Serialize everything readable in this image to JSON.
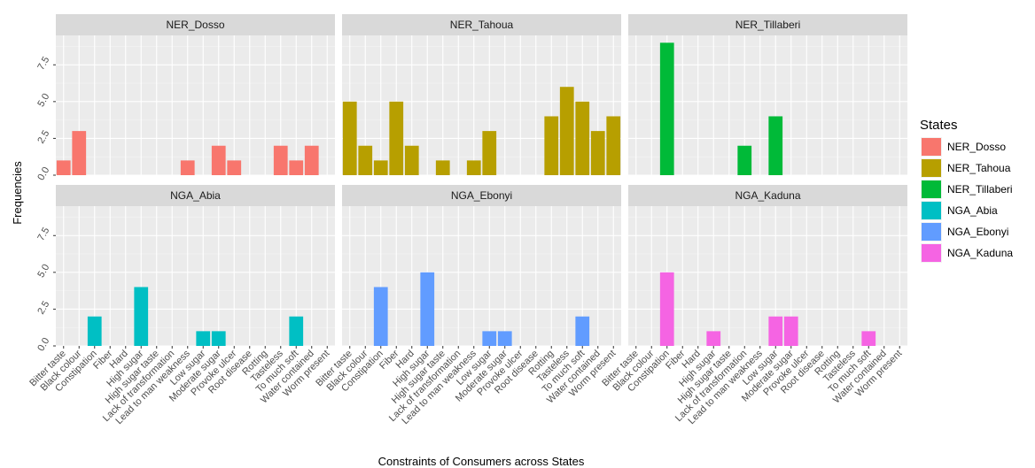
{
  "chart_data": {
    "type": "bar",
    "layout": "facet-grid 2x3",
    "xlabel": "Constraints of Consumers across States",
    "ylabel": "Frequencies",
    "ylim": [
      0,
      9.5
    ],
    "yticks": [
      0,
      2.5,
      5,
      7.5
    ],
    "ytick_labels": [
      "0.0",
      "2.5",
      "5.0",
      "7.5"
    ],
    "grid": true,
    "legend": {
      "title": "States",
      "position": "right"
    },
    "panels": [
      {
        "name": "NER_Dosso",
        "color": "#F8766D",
        "categories": [
          "Bitter taste",
          "Black colour",
          "Constipation",
          "Fiber",
          "Hard",
          "High sugar",
          "High sugar taste",
          "Lack of transformation",
          "Lead to man weakness",
          "Low sugar",
          "Moderate sugar",
          "Provoke ulcer",
          "Root disease",
          "Rotting",
          "Tasteless",
          "To much soft",
          "Water contained",
          "Worm present"
        ],
        "values": [
          1,
          3,
          0,
          0,
          0,
          0,
          0,
          0,
          1,
          0,
          2,
          1,
          0,
          0,
          2,
          1,
          2,
          0
        ]
      },
      {
        "name": "NER_Tahoua",
        "color": "#B79F00",
        "categories": [
          "Bitter taste",
          "Black colour",
          "Constipation",
          "Fiber",
          "Hard",
          "High sugar",
          "High sugar taste",
          "Lack of transformation",
          "Lead to man weakness",
          "Low sugar",
          "Moderate sugar",
          "Provoke ulcer",
          "Root disease",
          "Rotting",
          "Tasteless",
          "To much soft",
          "Water contained",
          "Worm present"
        ],
        "values": [
          5,
          2,
          1,
          5,
          2,
          0,
          1,
          0,
          1,
          3,
          0,
          0,
          0,
          4,
          6,
          5,
          3,
          4
        ]
      },
      {
        "name": "NER_Tillaberi",
        "color": "#00BA38",
        "categories": [
          "Bitter taste",
          "Black colour",
          "Constipation",
          "Fiber",
          "Hard",
          "High sugar",
          "High sugar taste",
          "Lack of transformation",
          "Lead to man weakness",
          "Low sugar",
          "Moderate sugar",
          "Provoke ulcer",
          "Root disease",
          "Rotting",
          "Tasteless",
          "To much soft",
          "Water contained",
          "Worm present"
        ],
        "values": [
          0,
          0,
          9,
          0,
          0,
          0,
          0,
          2,
          0,
          4,
          0,
          0,
          0,
          0,
          0,
          0,
          0,
          0
        ]
      },
      {
        "name": "NGA_Abia",
        "color": "#00BFC4",
        "categories": [
          "Bitter taste",
          "Black colour",
          "Constipation",
          "Fiber",
          "Hard",
          "High sugar",
          "High sugar taste",
          "Lack of transformation",
          "Lead to man weakness",
          "Low sugar",
          "Moderate sugar",
          "Provoke ulcer",
          "Root disease",
          "Rotting",
          "Tasteless",
          "To much soft",
          "Water contained",
          "Worm present"
        ],
        "values": [
          0,
          0,
          2,
          0,
          0,
          4,
          0,
          0,
          0,
          1,
          1,
          0,
          0,
          0,
          0,
          2,
          0,
          0
        ]
      },
      {
        "name": "NGA_Ebonyi",
        "color": "#619CFF",
        "categories": [
          "Bitter taste",
          "Black colour",
          "Constipation",
          "Fiber",
          "Hard",
          "High sugar",
          "High sugar taste",
          "Lack of transformation",
          "Lead to man weakness",
          "Low sugar",
          "Moderate sugar",
          "Provoke ulcer",
          "Root disease",
          "Rotting",
          "Tasteless",
          "To much soft",
          "Water contained",
          "Worm present"
        ],
        "values": [
          0,
          0,
          4,
          0,
          0,
          5,
          0,
          0,
          0,
          1,
          1,
          0,
          0,
          0,
          0,
          2,
          0,
          0
        ]
      },
      {
        "name": "NGA_Kaduna",
        "color": "#F564E3",
        "categories": [
          "Bitter taste",
          "Black colour",
          "Constipation",
          "Fiber",
          "Hard",
          "High sugar",
          "High sugar taste",
          "Lack of transformation",
          "Lead to man weakness",
          "Low sugar",
          "Moderate sugar",
          "Provoke ulcer",
          "Root disease",
          "Rotting",
          "Tasteless",
          "To much soft",
          "Water contained",
          "Worm present"
        ],
        "values": [
          0,
          0,
          5,
          0,
          0,
          1,
          0,
          0,
          0,
          2,
          2,
          0,
          0,
          0,
          0,
          1,
          0,
          0
        ]
      }
    ]
  }
}
